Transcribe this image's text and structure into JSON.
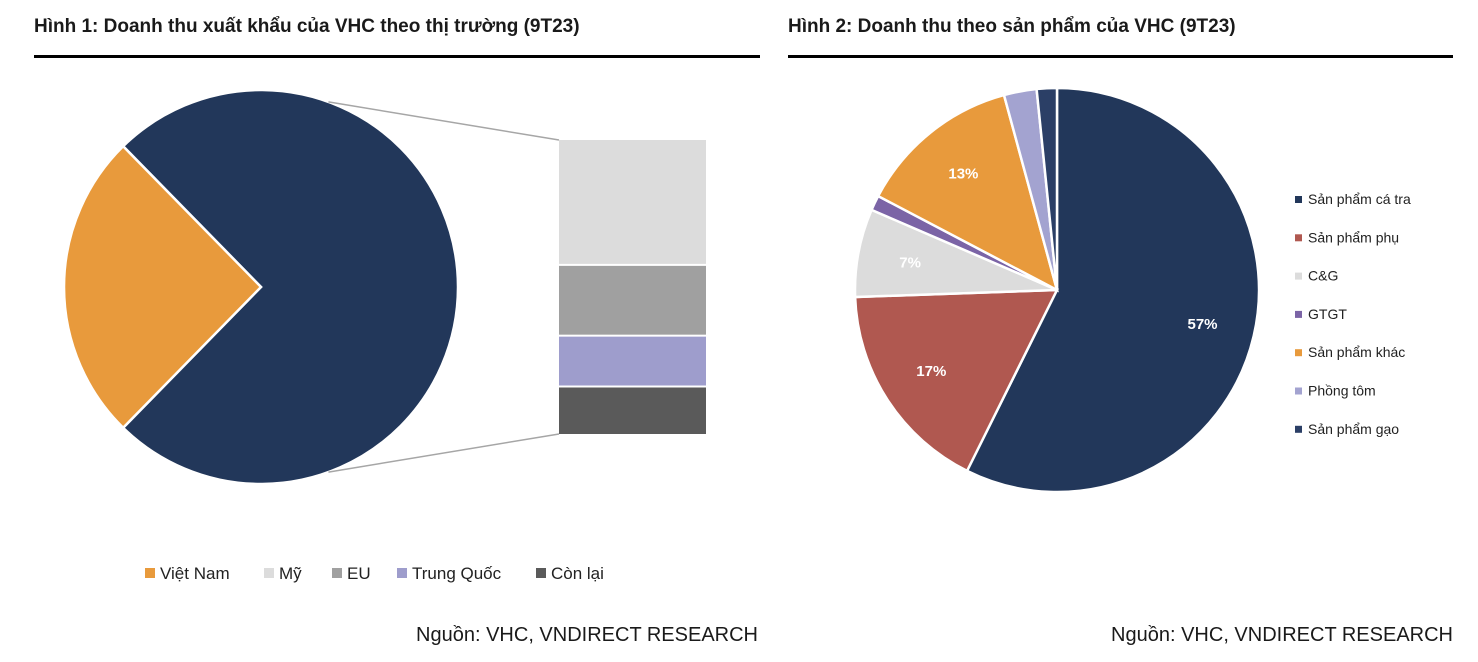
{
  "figure1": {
    "title": "Hình 1: Doanh thu xuất khẩu của VHC theo thị trường (9T23)",
    "source": "Nguồn: VHC, VNDIRECT RESEARCH"
  },
  "figure2": {
    "title": "Hình 2: Doanh thu theo sản phẩm của VHC (9T23)",
    "source": "Nguồn: VHC, VNDIRECT RESEARCH"
  },
  "chart_data": [
    {
      "type": "pie",
      "subtype": "bar-of-pie",
      "title": "Hình 1: Doanh thu xuất khẩu của VHC theo thị trường (9T23)",
      "categories": [
        "Việt Nam",
        "Mỹ",
        "EU",
        "Trung Quốc",
        "Còn lại"
      ],
      "values": [
        25,
        31.7,
        17.6,
        12.5,
        11.9
      ],
      "colors": [
        "#E89A3C",
        "#DCDCDC",
        "#A0A0A0",
        "#9E9DCC",
        "#5A5A5A"
      ],
      "grouped_slice_color": "#22375A",
      "grouped_categories": [
        "Mỹ",
        "EU",
        "Trung Quốc",
        "Còn lại"
      ],
      "legend": "bottom",
      "data_labels": false
    },
    {
      "type": "pie",
      "title": "Hình 2: Doanh thu theo sản phẩm của VHC (9T23)",
      "categories": [
        "Sản phẩm cá tra",
        "Sản phẩm phụ",
        "C&G",
        "GTGT",
        "Sản phẩm khác",
        "Phồng tôm",
        "Sản phẩm gạo"
      ],
      "values": [
        57,
        17,
        7,
        1.2,
        13,
        2.6,
        1.6
      ],
      "colors": [
        "#22375A",
        "#B05850",
        "#DCDCDC",
        "#7B64A6",
        "#E89A3C",
        "#A3A3D0",
        "#2B3F66"
      ],
      "data_labels": [
        "57%",
        "17%",
        "7%",
        "",
        "13%",
        "",
        ""
      ],
      "legend": "right"
    }
  ]
}
